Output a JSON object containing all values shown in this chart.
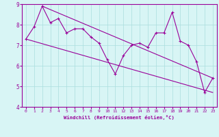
{
  "x": [
    0,
    1,
    2,
    3,
    4,
    5,
    6,
    7,
    8,
    9,
    10,
    11,
    12,
    13,
    14,
    15,
    16,
    17,
    18,
    19,
    20,
    21,
    22,
    23
  ],
  "line1": [
    7.3,
    7.9,
    8.9,
    8.1,
    8.3,
    7.6,
    7.8,
    7.8,
    7.4,
    7.1,
    6.3,
    5.6,
    6.5,
    7.0,
    7.1,
    6.9,
    7.6,
    7.6,
    8.6,
    7.2,
    7.0,
    6.2,
    4.7,
    5.4
  ],
  "upper_line": [
    [
      2,
      8.9
    ],
    [
      23,
      5.4
    ]
  ],
  "lower_line": [
    [
      0,
      7.3
    ],
    [
      23,
      4.7
    ]
  ],
  "color": "#990099",
  "bg_color": "#d8f5f5",
  "grid_color": "#aadddd",
  "xlabel": "Windchill (Refroidissement éolien,°C)",
  "ylim": [
    4,
    9
  ],
  "xlim": [
    -0.5,
    23.5
  ],
  "yticks": [
    4,
    5,
    6,
    7,
    8,
    9
  ],
  "xticks": [
    0,
    1,
    2,
    3,
    4,
    5,
    6,
    7,
    8,
    9,
    10,
    11,
    12,
    13,
    14,
    15,
    16,
    17,
    18,
    19,
    20,
    21,
    22,
    23
  ]
}
